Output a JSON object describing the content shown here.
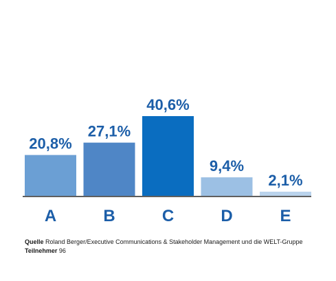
{
  "chart_data": {
    "type": "bar",
    "categories": [
      "A",
      "B",
      "C",
      "D",
      "E"
    ],
    "values": [
      20.8,
      27.1,
      40.6,
      9.4,
      2.1
    ],
    "value_labels": [
      "20,8%",
      "27,1%",
      "40,6%",
      "9,4%",
      "2,1%"
    ],
    "ylim": [
      0,
      40.6
    ],
    "grid": false,
    "legend": "none",
    "colors": [
      "#6b9fd4",
      "#4f86c6",
      "#0a6dc0",
      "#9cc0e4",
      "#bad3ec"
    ],
    "label_color": "#1c5ea8",
    "axis_color": "#2a2a2a"
  },
  "footer": {
    "source_label": "Quelle",
    "source_text": "Roland Berger/Executive Communications & Stakeholder Management und die WELT-Gruppe",
    "participants_label": "Teilnehmer",
    "participants_value": "96"
  }
}
